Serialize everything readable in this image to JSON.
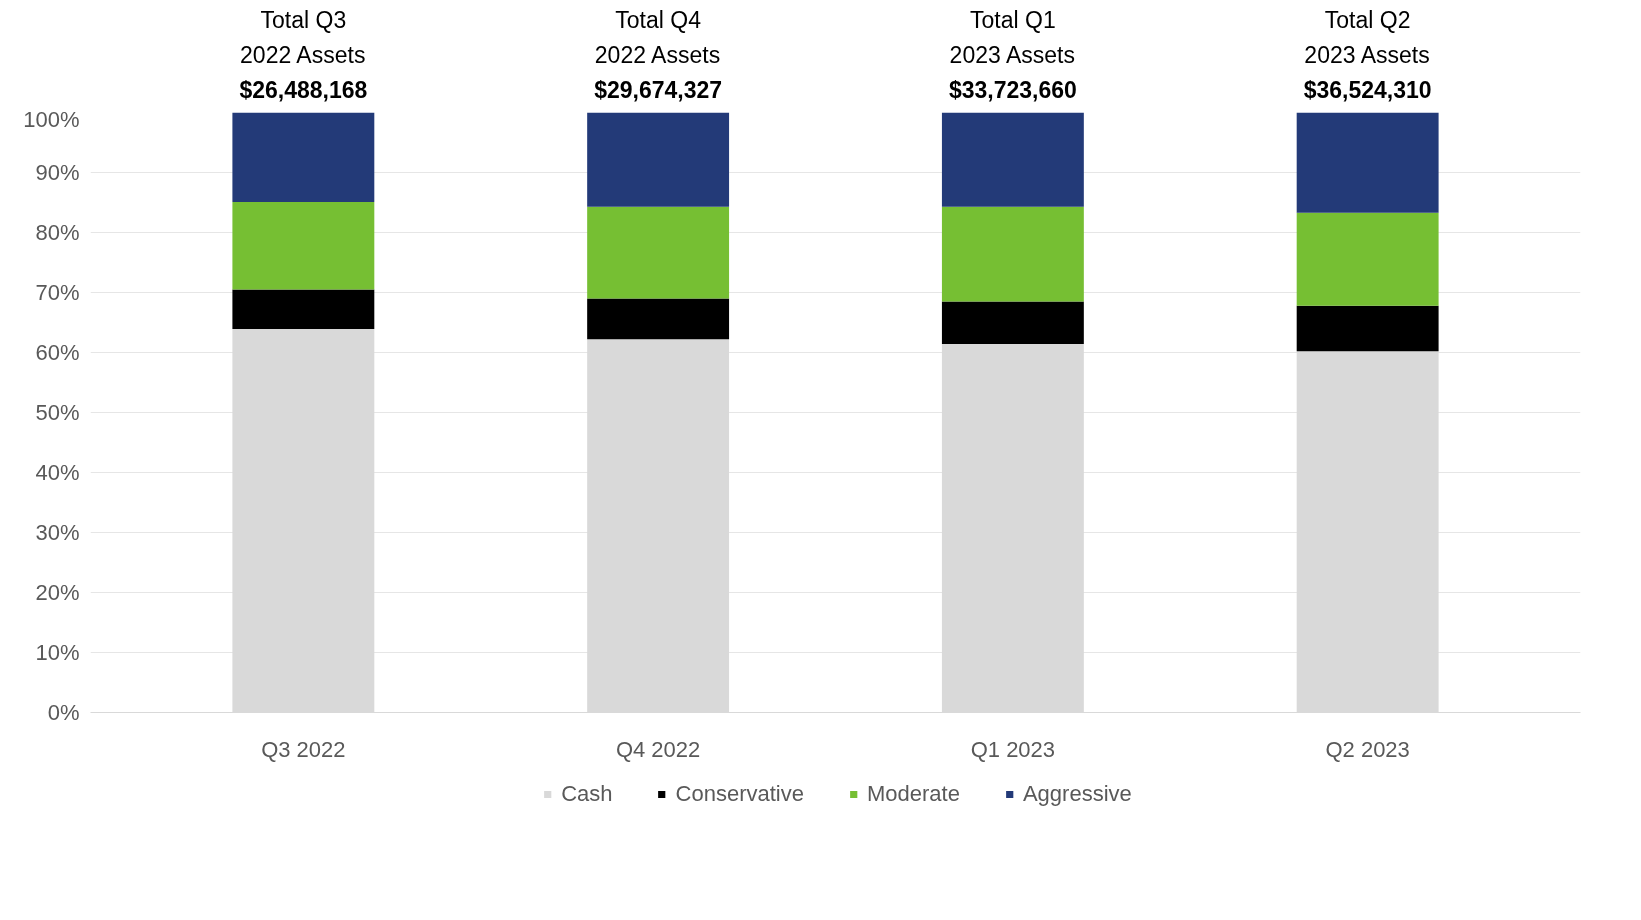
{
  "chart_data": {
    "type": "bar",
    "stacked": true,
    "categories": [
      "Q3 2022",
      "Q4 2022",
      "Q1 2023",
      "Q2 2023"
    ],
    "series": [
      {
        "name": "Cash",
        "color": "#d9d9d9",
        "values": [
          63.9,
          62.2,
          61.4,
          60.2
        ]
      },
      {
        "name": "Conservative",
        "color": "#000000",
        "values": [
          6.6,
          6.8,
          7.1,
          7.6
        ]
      },
      {
        "name": "Moderate",
        "color": "#76bf33",
        "values": [
          14.6,
          15.3,
          15.8,
          15.5
        ]
      },
      {
        "name": "Aggressive",
        "color": "#233a78",
        "values": [
          14.9,
          15.7,
          15.7,
          16.7
        ]
      }
    ],
    "ylim": [
      0,
      100
    ],
    "yticks": [
      {
        "value": 0,
        "label": "0%"
      },
      {
        "value": 10,
        "label": "10%"
      },
      {
        "value": 20,
        "label": "20%"
      },
      {
        "value": 30,
        "label": "30%"
      },
      {
        "value": 40,
        "label": "40%"
      },
      {
        "value": 50,
        "label": "50%"
      },
      {
        "value": 60,
        "label": "60%"
      },
      {
        "value": 70,
        "label": "70%"
      },
      {
        "value": 80,
        "label": "80%"
      },
      {
        "value": 90,
        "label": "90%"
      },
      {
        "value": 100,
        "label": "100%"
      }
    ],
    "grid": "y",
    "legend": "bottom",
    "annotations": [
      {
        "text": "Total Q3\n2022 Assets\n$26,488,168",
        "x": "Q3 2022",
        "y": 100
      },
      {
        "text": "Total Q4\n2022 Assets\n$29,674,327",
        "x": "Q4 2022",
        "y": 100
      },
      {
        "text": "Total Q1\n2023 Assets\n$33,723,660",
        "x": "Q1 2023",
        "y": 100
      },
      {
        "text": "Total Q2\n2023 Assets\n$36,524,310",
        "x": "Q2 2023",
        "y": 100
      }
    ]
  }
}
